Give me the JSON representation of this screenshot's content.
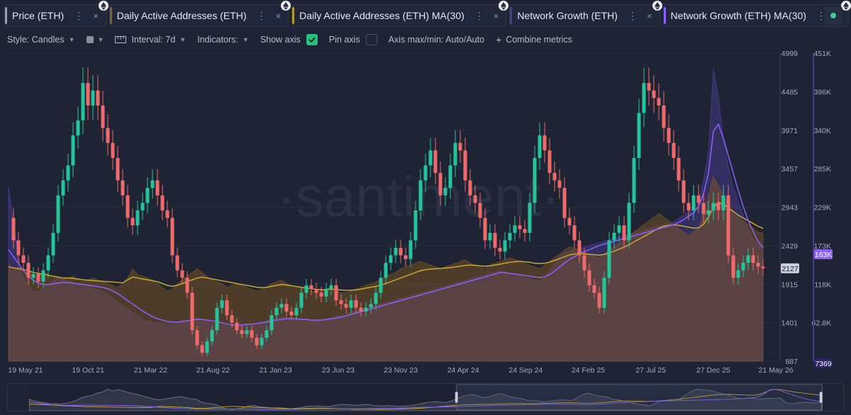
{
  "tabs": [
    {
      "label": "Price (ETH)",
      "color": "#9aa0ab"
    },
    {
      "label": "Daily Active Addresses (ETH)",
      "color": "#8a5a1f"
    },
    {
      "label": "Daily Active Addresses (ETH) MA(30)",
      "color": "#b59a2e"
    },
    {
      "label": "Network Growth (ETH)",
      "color": "#4b3a8a"
    },
    {
      "label": "Network Growth (ETH) MA(30)",
      "color": "#8b62ff"
    }
  ],
  "toolbar": {
    "style_label": "Style: Candles",
    "interval_label": "Interval: 7d",
    "indicators_label": "Indicators:",
    "show_axis_label": "Show axis",
    "pin_axis_label": "Pin axis",
    "axis_label": "Axis max/min: Auto/Auto",
    "combine_label": "Combine metrics"
  },
  "watermark": "·santiment·",
  "chart_data": {
    "type": "line",
    "x_ticks": [
      "19 May 21",
      "19 Oct 21",
      "21 Mar 22",
      "21 Aug 22",
      "21 Jan 23",
      "23 Jun 23",
      "23 Nov 23",
      "24 Apr 24",
      "24 Sep 24",
      "24 Feb 25",
      "27 Jul 25",
      "27 Dec 25",
      "21 May 26"
    ],
    "y_left_ticks": [
      "4999",
      "4485",
      "3971",
      "3457",
      "2943",
      "2429",
      "1915",
      "1401",
      "887"
    ],
    "y_left_range": [
      887,
      4999
    ],
    "y_right_ticks": [
      "451K",
      "396K",
      "340K",
      "285K",
      "229K",
      "173K",
      "118K",
      "62.8K"
    ],
    "y_right_range": [
      7369,
      451000
    ],
    "price_marker": "2127",
    "network_growth_marker": "163K",
    "network_growth_min_marker": "7369",
    "series": [
      {
        "name": "Price (ETH)",
        "type": "candles",
        "values": [
          2800,
          2500,
          2300,
          2200,
          2000,
          2050,
          1950,
          2100,
          2300,
          2600,
          3100,
          3300,
          3500,
          3900,
          4100,
          4600,
          4300,
          4500,
          4300,
          4000,
          3800,
          3600,
          3300,
          3100,
          2800,
          2700,
          2900,
          3000,
          3200,
          3300,
          3100,
          2900,
          2800,
          2300,
          2100,
          2000,
          1800,
          1300,
          1100,
          1000,
          1150,
          1300,
          1600,
          1700,
          1500,
          1400,
          1300,
          1250,
          1300,
          1200,
          1100,
          1200,
          1300,
          1500,
          1600,
          1650,
          1550,
          1500,
          1600,
          1800,
          1900,
          1850,
          1800,
          1750,
          1850,
          1900,
          1700,
          1650,
          1600,
          1700,
          1600,
          1550,
          1600,
          1650,
          1800,
          2000,
          2200,
          2300,
          2400,
          2300,
          2250,
          2500,
          2900,
          3300,
          3500,
          3700,
          3400,
          3100,
          3200,
          3500,
          3800,
          3700,
          3300,
          3100,
          3000,
          2800,
          2500,
          2600,
          2400,
          2350,
          2500,
          2600,
          2700,
          2650,
          2600,
          3000,
          3600,
          3900,
          3700,
          3400,
          3300,
          3200,
          2800,
          2700,
          2500,
          2300,
          2100,
          1900,
          1800,
          1600,
          2000,
          2500,
          2600,
          2700,
          2500,
          3000,
          3600,
          4200,
          4600,
          4500,
          4400,
          4300,
          4000,
          3800,
          3600,
          3300,
          3000,
          2900,
          3100,
          3000,
          2850,
          2900,
          3000,
          2900,
          3100,
          2300,
          2000,
          2100,
          2200,
          2300,
          2200,
          2150,
          2127
        ]
      },
      {
        "name": "Daily Active Addresses (ETH)",
        "type": "area",
        "values": [
          520,
          500,
          510,
          490,
          480,
          470,
          460,
          480,
          470,
          460,
          450,
          440,
          450,
          460,
          440,
          430,
          440,
          450,
          440,
          430,
          420,
          410,
          400,
          420,
          450,
          500,
          470,
          460,
          450,
          440,
          420,
          400,
          380,
          390,
          420,
          440,
          460,
          480,
          500,
          480,
          460,
          440,
          430,
          420,
          400,
          410,
          420,
          410,
          400,
          390,
          380,
          390,
          400,
          420,
          430,
          440,
          420,
          410,
          400,
          400,
          390,
          380,
          370,
          380,
          390,
          400,
          380,
          370,
          370,
          380,
          390,
          400,
          410,
          420,
          430,
          440,
          460,
          470,
          480,
          500,
          510,
          520,
          530,
          540,
          530,
          520,
          510,
          500,
          510,
          520,
          530,
          540,
          550,
          530,
          520,
          510,
          500,
          520,
          530,
          540,
          550,
          560,
          550,
          540,
          530,
          520,
          510,
          500,
          520,
          540,
          560,
          580,
          600,
          620,
          610,
          600,
          590,
          580,
          570,
          560,
          580,
          600,
          620,
          640,
          660,
          680,
          700,
          720,
          740,
          760,
          780,
          800,
          780,
          760,
          740,
          720,
          700,
          680,
          700,
          720,
          800,
          900,
          1000,
          950,
          900,
          850,
          800,
          780,
          760,
          740,
          720,
          700,
          690
        ]
      },
      {
        "name": "Daily Active Addresses (ETH) MA(30)",
        "type": "line",
        "values": [
          510,
          505,
          500,
          495,
          490,
          480,
          475,
          470,
          465,
          460,
          455,
          450,
          450,
          448,
          445,
          440,
          438,
          436,
          434,
          432,
          430,
          428,
          426,
          424,
          440,
          455,
          450,
          445,
          440,
          435,
          430,
          420,
          410,
          405,
          410,
          420,
          430,
          440,
          450,
          455,
          450,
          445,
          440,
          435,
          430,
          425,
          420,
          415,
          410,
          405,
          400,
          398,
          400,
          405,
          410,
          415,
          412,
          408,
          404,
          400,
          396,
          392,
          388,
          386,
          388,
          390,
          388,
          385,
          383,
          384,
          386,
          390,
          395,
          400,
          405,
          412,
          420,
          430,
          440,
          450,
          460,
          470,
          480,
          490,
          495,
          498,
          500,
          502,
          504,
          506,
          510,
          514,
          518,
          520,
          518,
          516,
          514,
          516,
          520,
          525,
          530,
          535,
          538,
          540,
          538,
          535,
          530,
          528,
          530,
          536,
          545,
          555,
          565,
          575,
          580,
          582,
          580,
          578,
          576,
          574,
          578,
          585,
          595,
          605,
          618,
          630,
          645,
          660,
          675,
          690,
          705,
          720,
          730,
          735,
          738,
          735,
          730,
          725,
          720,
          722,
          740,
          780,
          830,
          860,
          850,
          830,
          810,
          790,
          775,
          760,
          745,
          730,
          718
        ]
      },
      {
        "name": "Network Growth (ETH)",
        "type": "area",
        "values": [
          250,
          200,
          150,
          120,
          110,
          100,
          100,
          105,
          110,
          115,
          120,
          118,
          115,
          112,
          110,
          108,
          106,
          104,
          102,
          100,
          95,
          90,
          85,
          80,
          75,
          70,
          65,
          60,
          58,
          56,
          55,
          54,
          53,
          52,
          54,
          56,
          58,
          60,
          62,
          60,
          58,
          56,
          54,
          52,
          50,
          49,
          50,
          51,
          52,
          53,
          54,
          56,
          58,
          60,
          62,
          64,
          63,
          62,
          61,
          60,
          59,
          58,
          58,
          59,
          60,
          62,
          64,
          66,
          68,
          70,
          72,
          74,
          76,
          78,
          80,
          82,
          84,
          86,
          88,
          90,
          92,
          94,
          96,
          98,
          100,
          102,
          104,
          106,
          108,
          110,
          112,
          114,
          116,
          118,
          120,
          122,
          124,
          126,
          128,
          130,
          128,
          126,
          124,
          122,
          120,
          118,
          116,
          114,
          120,
          130,
          140,
          150,
          155,
          158,
          160,
          162,
          164,
          166,
          168,
          170,
          172,
          174,
          176,
          178,
          180,
          182,
          184,
          186,
          188,
          190,
          192,
          194,
          196,
          198,
          200,
          205,
          210,
          215,
          220,
          230,
          260,
          300,
          420,
          380,
          320,
          280,
          250,
          230,
          210,
          190,
          175,
          168,
          163
        ]
      },
      {
        "name": "Network Growth (ETH) MA(30)",
        "type": "line",
        "values": [
          160,
          150,
          140,
          130,
          122,
          116,
          112,
          110,
          110,
          111,
          112,
          113,
          113,
          112,
          111,
          110,
          109,
          108,
          107,
          106,
          104,
          101,
          97,
          92,
          87,
          82,
          77,
          72,
          68,
          64,
          61,
          59,
          57,
          56,
          56,
          57,
          58,
          59,
          60,
          60,
          59,
          58,
          57,
          55,
          53,
          52,
          52,
          52,
          53,
          53,
          54,
          55,
          56,
          58,
          59,
          60,
          61,
          61,
          61,
          60,
          60,
          59,
          59,
          59,
          60,
          61,
          62,
          63,
          65,
          67,
          69,
          71,
          73,
          75,
          77,
          79,
          81,
          83,
          85,
          87,
          89,
          91,
          93,
          95,
          97,
          99,
          101,
          103,
          105,
          107,
          109,
          111,
          113,
          115,
          117,
          119,
          121,
          123,
          125,
          127,
          127,
          126,
          125,
          124,
          123,
          122,
          121,
          120,
          121,
          124,
          129,
          135,
          141,
          146,
          150,
          154,
          157,
          160,
          163,
          166,
          168,
          170,
          172,
          174,
          176,
          178,
          180,
          182,
          184,
          186,
          188,
          190,
          192,
          194,
          196,
          199,
          203,
          208,
          213,
          222,
          240,
          270,
          330,
          340,
          320,
          295,
          270,
          245,
          222,
          202,
          186,
          172,
          163
        ]
      }
    ]
  }
}
